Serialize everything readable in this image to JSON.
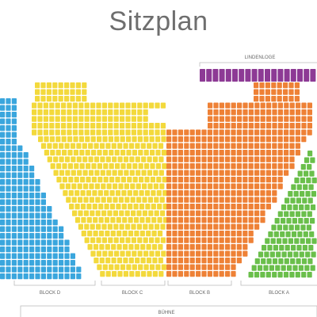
{
  "title": "Sitzplan",
  "colors": {
    "blockA": "#6abf4b",
    "blockB": "#ee8136",
    "blockC": "#f3d93c",
    "blockD": "#3aa6dd",
    "lindenloge": "#8d3a95",
    "bracket": "#bbbbbb",
    "label": "#666666"
  },
  "sections": {
    "lindenloge": {
      "label": "LINDENLOGE"
    },
    "blockA": {
      "label": "BLOCK A"
    },
    "blockB": {
      "label": "BLOCK B"
    },
    "blockC": {
      "label": "BLOCK C"
    },
    "blockD": {
      "label": "BLOCK D"
    }
  },
  "stage": {
    "label": "BÜHNE"
  }
}
